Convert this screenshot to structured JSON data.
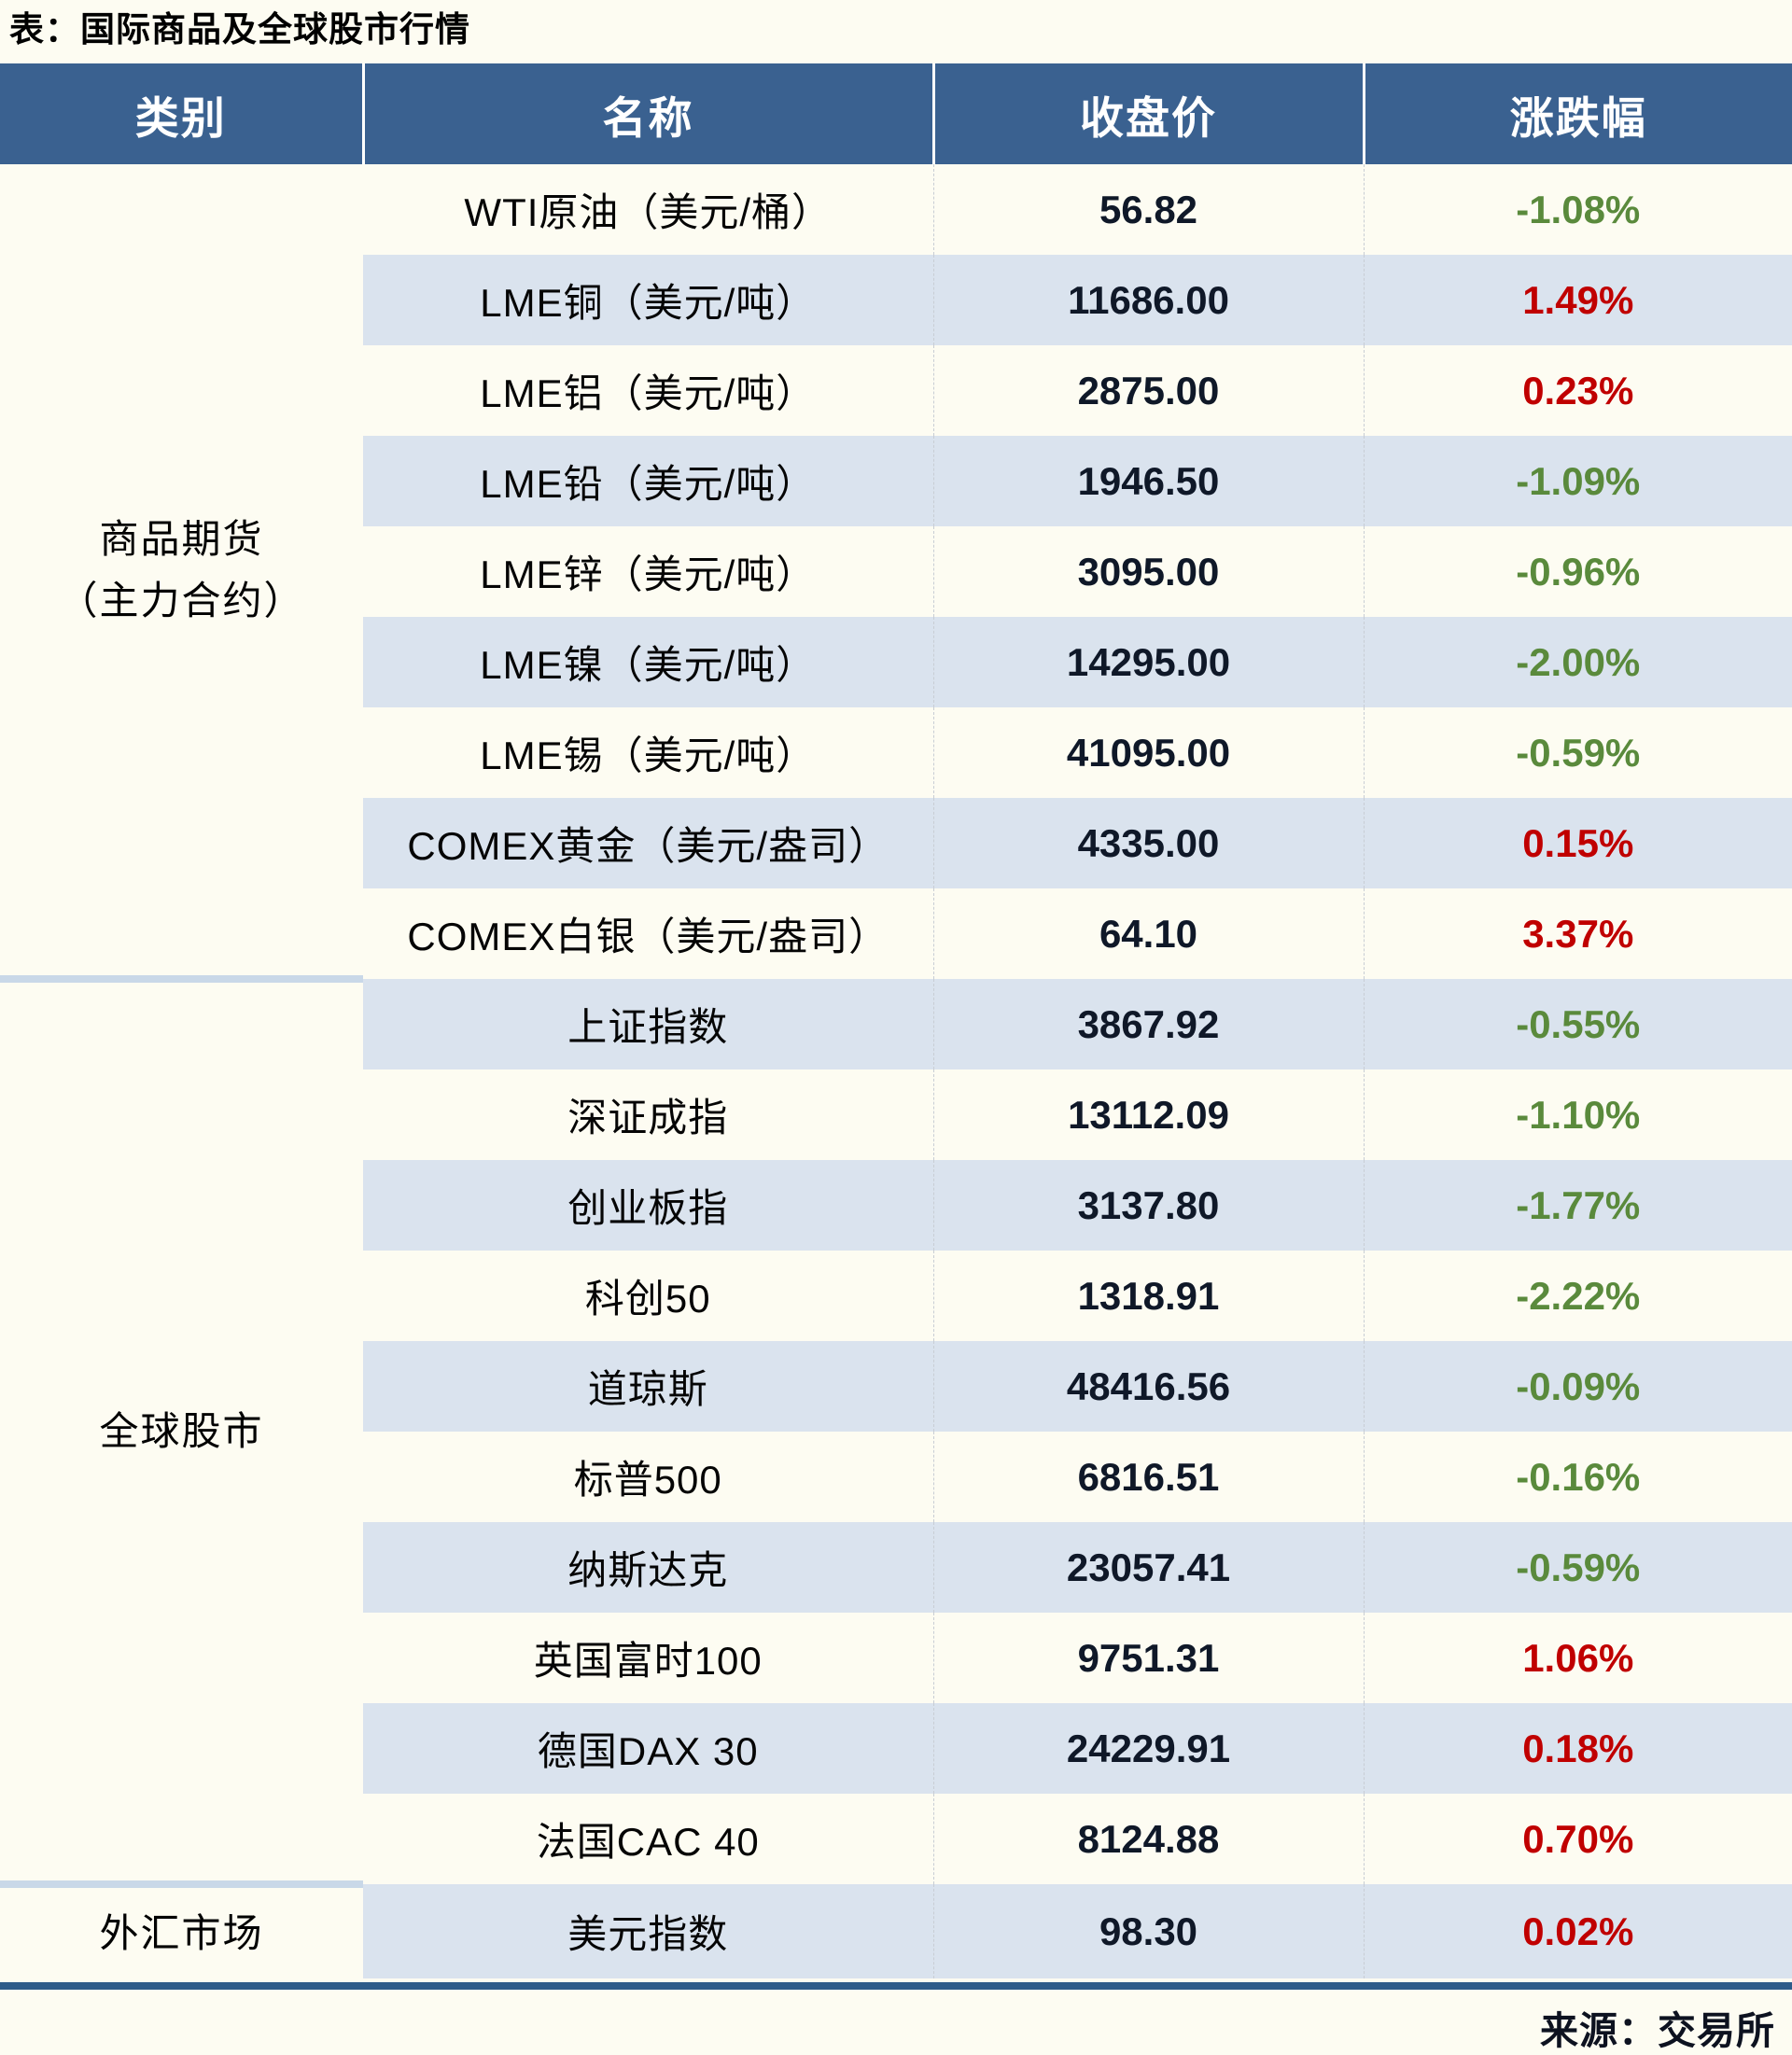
{
  "title": "表：国际商品及全球股市行情",
  "source": "来源：交易所",
  "colors": {
    "header_bg": "#3A6190",
    "stripe": "#DAE3EE",
    "up_red": "#C00000",
    "down_green": "#5A8A3C",
    "value_ink": "#0F1828",
    "pale_separator": "#C9D8E8",
    "bottom_rule": "#2E5C8A",
    "page_bg": "#FDFCF2"
  },
  "table": {
    "headers": [
      "类别",
      "名称",
      "收盘价",
      "涨跌幅"
    ],
    "sections": [
      {
        "category": "商品期货（主力合约）",
        "category_lines": [
          "商品期货",
          "（主力合约）"
        ],
        "rows": [
          {
            "name": "WTI原油（美元/桶）",
            "close": "56.82",
            "change": "-1.08%",
            "direction": "down"
          },
          {
            "name": "LME铜（美元/吨）",
            "close": "11686.00",
            "change": "1.49%",
            "direction": "up"
          },
          {
            "name": "LME铝（美元/吨）",
            "close": "2875.00",
            "change": "0.23%",
            "direction": "up"
          },
          {
            "name": "LME铅（美元/吨）",
            "close": "1946.50",
            "change": "-1.09%",
            "direction": "down"
          },
          {
            "name": "LME锌（美元/吨）",
            "close": "3095.00",
            "change": "-0.96%",
            "direction": "down"
          },
          {
            "name": "LME镍（美元/吨）",
            "close": "14295.00",
            "change": "-2.00%",
            "direction": "down"
          },
          {
            "name": "LME锡（美元/吨）",
            "close": "41095.00",
            "change": "-0.59%",
            "direction": "down"
          },
          {
            "name": "COMEX黄金（美元/盎司）",
            "close": "4335.00",
            "change": "0.15%",
            "direction": "up"
          },
          {
            "name": "COMEX白银（美元/盎司）",
            "close": "64.10",
            "change": "3.37%",
            "direction": "up"
          }
        ]
      },
      {
        "category": "全球股市",
        "category_lines": [
          "全球股市"
        ],
        "rows": [
          {
            "name": "上证指数",
            "close": "3867.92",
            "change": "-0.55%",
            "direction": "down"
          },
          {
            "name": "深证成指",
            "close": "13112.09",
            "change": "-1.10%",
            "direction": "down"
          },
          {
            "name": "创业板指",
            "close": "3137.80",
            "change": "-1.77%",
            "direction": "down"
          },
          {
            "name": "科创50",
            "close": "1318.91",
            "change": "-2.22%",
            "direction": "down"
          },
          {
            "name": "道琼斯",
            "close": "48416.56",
            "change": "-0.09%",
            "direction": "down"
          },
          {
            "name": "标普500",
            "close": "6816.51",
            "change": "-0.16%",
            "direction": "down"
          },
          {
            "name": "纳斯达克",
            "close": "23057.41",
            "change": "-0.59%",
            "direction": "down"
          },
          {
            "name": "英国富时100",
            "close": "9751.31",
            "change": "1.06%",
            "direction": "up"
          },
          {
            "name": "德国DAX 30",
            "close": "24229.91",
            "change": "0.18%",
            "direction": "up"
          },
          {
            "name": "法国CAC 40",
            "close": "8124.88",
            "change": "0.70%",
            "direction": "up"
          }
        ]
      },
      {
        "category": "外汇市场",
        "category_lines": [
          "外汇市场"
        ],
        "rows": [
          {
            "name": "美元指数",
            "close": "98.30",
            "change": "0.02%",
            "direction": "up"
          }
        ]
      }
    ]
  },
  "chart_data": {
    "type": "table",
    "title": "表：国际商品及全球股市行情",
    "columns": [
      "类别",
      "名称",
      "收盘价",
      "涨跌幅"
    ],
    "rows": [
      [
        "商品期货（主力合约）",
        "WTI原油（美元/桶）",
        56.82,
        "-1.08%"
      ],
      [
        "商品期货（主力合约）",
        "LME铜（美元/吨）",
        11686.0,
        "1.49%"
      ],
      [
        "商品期货（主力合约）",
        "LME铝（美元/吨）",
        2875.0,
        "0.23%"
      ],
      [
        "商品期货（主力合约）",
        "LME铅（美元/吨）",
        1946.5,
        "-1.09%"
      ],
      [
        "商品期货（主力合约）",
        "LME锌（美元/吨）",
        3095.0,
        "-0.96%"
      ],
      [
        "商品期货（主力合约）",
        "LME镍（美元/吨）",
        14295.0,
        "-2.00%"
      ],
      [
        "商品期货（主力合约）",
        "LME锡（美元/吨）",
        41095.0,
        "-0.59%"
      ],
      [
        "商品期货（主力合约）",
        "COMEX黄金（美元/盎司）",
        4335.0,
        "0.15%"
      ],
      [
        "商品期货（主力合约）",
        "COMEX白银（美元/盎司）",
        64.1,
        "3.37%"
      ],
      [
        "全球股市",
        "上证指数",
        3867.92,
        "-0.55%"
      ],
      [
        "全球股市",
        "深证成指",
        13112.09,
        "-1.10%"
      ],
      [
        "全球股市",
        "创业板指",
        3137.8,
        "-1.77%"
      ],
      [
        "全球股市",
        "科创50",
        1318.91,
        "-2.22%"
      ],
      [
        "全球股市",
        "道琼斯",
        48416.56,
        "-0.09%"
      ],
      [
        "全球股市",
        "标普500",
        6816.51,
        "-0.16%"
      ],
      [
        "全球股市",
        "纳斯达克",
        23057.41,
        "-0.59%"
      ],
      [
        "全球股市",
        "英国富时100",
        9751.31,
        "1.06%"
      ],
      [
        "全球股市",
        "德国DAX 30",
        24229.91,
        "0.18%"
      ],
      [
        "全球股市",
        "法国CAC 40",
        8124.88,
        "0.70%"
      ],
      [
        "外汇市场",
        "美元指数",
        98.3,
        "0.02%"
      ]
    ],
    "notes": "红色=上涨, 绿色=下跌; 来源：交易所"
  }
}
